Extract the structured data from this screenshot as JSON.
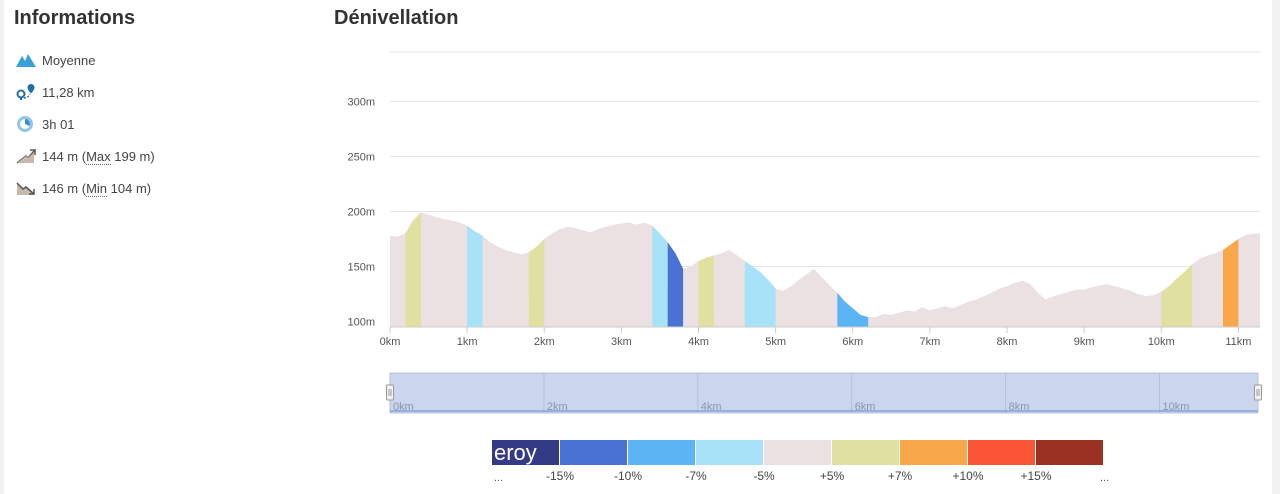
{
  "info": {
    "title": "Informations",
    "items": [
      {
        "icon": "mountain-icon",
        "text": "Moyenne"
      },
      {
        "icon": "route-pin-icon",
        "text": "11,28 km"
      },
      {
        "icon": "clock-icon",
        "text": "3h 01"
      }
    ],
    "ascent": {
      "prefix": "144 m (",
      "max_label": "Max",
      "suffix": " 199 m)"
    },
    "descent": {
      "prefix": "146 m (",
      "min_label": "Min",
      "suffix": " 104 m)"
    }
  },
  "elevation": {
    "title": "Dénivellation"
  },
  "chart_data": {
    "type": "area",
    "title": "Dénivellation",
    "xlabel": "",
    "ylabel": "",
    "x_unit": "km",
    "y_unit": "m",
    "xlim": [
      0,
      11.28
    ],
    "ylim": [
      95,
      345
    ],
    "y_ticks": [
      "100m",
      "150m",
      "200m",
      "250m",
      "300m"
    ],
    "y_tick_values": [
      100,
      150,
      200,
      250,
      300
    ],
    "x_ticks": [
      "0km",
      "1km",
      "2km",
      "3km",
      "4km",
      "5km",
      "6km",
      "7km",
      "8km",
      "9km",
      "10km",
      "11km"
    ],
    "x_tick_values": [
      0,
      1,
      2,
      3,
      4,
      5,
      6,
      7,
      8,
      9,
      10,
      11
    ],
    "grid": true,
    "series": [
      {
        "x": [
          0,
          0.1,
          0.2,
          0.3,
          0.4,
          0.5,
          0.6,
          0.7,
          0.8,
          0.9,
          1.0,
          1.1,
          1.2,
          1.3,
          1.4,
          1.5,
          1.6,
          1.7,
          1.8,
          1.9,
          2.0,
          2.1,
          2.2,
          2.3,
          2.4,
          2.5,
          2.6,
          2.7,
          2.8,
          2.9,
          3.0,
          3.1,
          3.2,
          3.3,
          3.4,
          3.5,
          3.6,
          3.7,
          3.8,
          3.9,
          4.0,
          4.1,
          4.2,
          4.3,
          4.4,
          4.5,
          4.6,
          4.7,
          4.8,
          4.9,
          5.0,
          5.1,
          5.2,
          5.3,
          5.4,
          5.5,
          5.6,
          5.7,
          5.8,
          5.9,
          6.0,
          6.1,
          6.2,
          6.3,
          6.4,
          6.5,
          6.6,
          6.7,
          6.8,
          6.9,
          7.0,
          7.1,
          7.2,
          7.3,
          7.4,
          7.5,
          7.6,
          7.7,
          7.8,
          7.9,
          8.0,
          8.1,
          8.2,
          8.3,
          8.4,
          8.5,
          8.6,
          8.7,
          8.8,
          8.9,
          9.0,
          9.1,
          9.2,
          9.3,
          9.4,
          9.5,
          9.6,
          9.7,
          9.8,
          9.9,
          10.0,
          10.1,
          10.2,
          10.3,
          10.4,
          10.5,
          10.6,
          10.7,
          10.8,
          10.9,
          11.0,
          11.1,
          11.2,
          11.28
        ],
        "y": [
          178,
          177,
          180,
          192,
          199,
          197,
          195,
          193,
          192,
          190,
          187,
          182,
          178,
          172,
          168,
          165,
          163,
          161,
          163,
          168,
          175,
          180,
          184,
          186,
          185,
          183,
          181,
          184,
          186,
          188,
          189,
          190,
          188,
          190,
          187,
          180,
          172,
          162,
          148,
          150,
          155,
          158,
          160,
          162,
          165,
          160,
          155,
          150,
          145,
          138,
          130,
          128,
          132,
          138,
          143,
          148,
          140,
          133,
          126,
          118,
          112,
          106,
          104,
          104,
          107,
          106,
          108,
          110,
          109,
          113,
          110,
          112,
          114,
          112,
          115,
          118,
          120,
          123,
          126,
          130,
          132,
          135,
          137,
          134,
          126,
          120,
          123,
          125,
          127,
          129,
          129,
          131,
          133,
          134,
          132,
          130,
          128,
          125,
          123,
          124,
          127,
          132,
          139,
          145,
          152,
          157,
          160,
          162,
          165,
          170,
          175,
          179,
          180,
          180
        ]
      }
    ],
    "slope_segments": [
      {
        "from": 0.2,
        "to": 0.4,
        "color": "#e0e0a0"
      },
      {
        "from": 1.0,
        "to": 1.2,
        "color": "#a8e2f8"
      },
      {
        "from": 1.8,
        "to": 2.0,
        "color": "#e0e0a0"
      },
      {
        "from": 3.4,
        "to": 3.6,
        "color": "#a8e2f8"
      },
      {
        "from": 3.6,
        "to": 3.8,
        "color": "#4a72d4"
      },
      {
        "from": 4.0,
        "to": 4.2,
        "color": "#e0e0a0"
      },
      {
        "from": 4.6,
        "to": 5.0,
        "color": "#a8e2f8"
      },
      {
        "from": 5.8,
        "to": 6.2,
        "color": "#5bb4f4"
      },
      {
        "from": 10.0,
        "to": 10.4,
        "color": "#e0e0a0"
      },
      {
        "from": 10.8,
        "to": 11.0,
        "color": "#f8a84a"
      }
    ],
    "base_fill_color": "#ebe0e2",
    "navigator": {
      "x_ticks": [
        "0km",
        "2km",
        "4km",
        "6km",
        "8km",
        "10km"
      ],
      "x_tick_values": [
        0,
        2,
        4,
        6,
        8,
        10
      ],
      "fill_color": "#cbd6ee",
      "line_color": "#6f9be0"
    }
  },
  "legend": {
    "first_label": "eroy",
    "colors": [
      "#343a86",
      "#4a72d4",
      "#5bb4f4",
      "#a8e2f8",
      "#ebe0e2",
      "#e0e0a0",
      "#f8a84a",
      "#fa5535",
      "#9a3122"
    ],
    "labels": [
      "...",
      "-15%",
      "-10%",
      "-7%",
      "-5%",
      "+5%",
      "+7%",
      "+10%",
      "+15%",
      "..."
    ]
  }
}
